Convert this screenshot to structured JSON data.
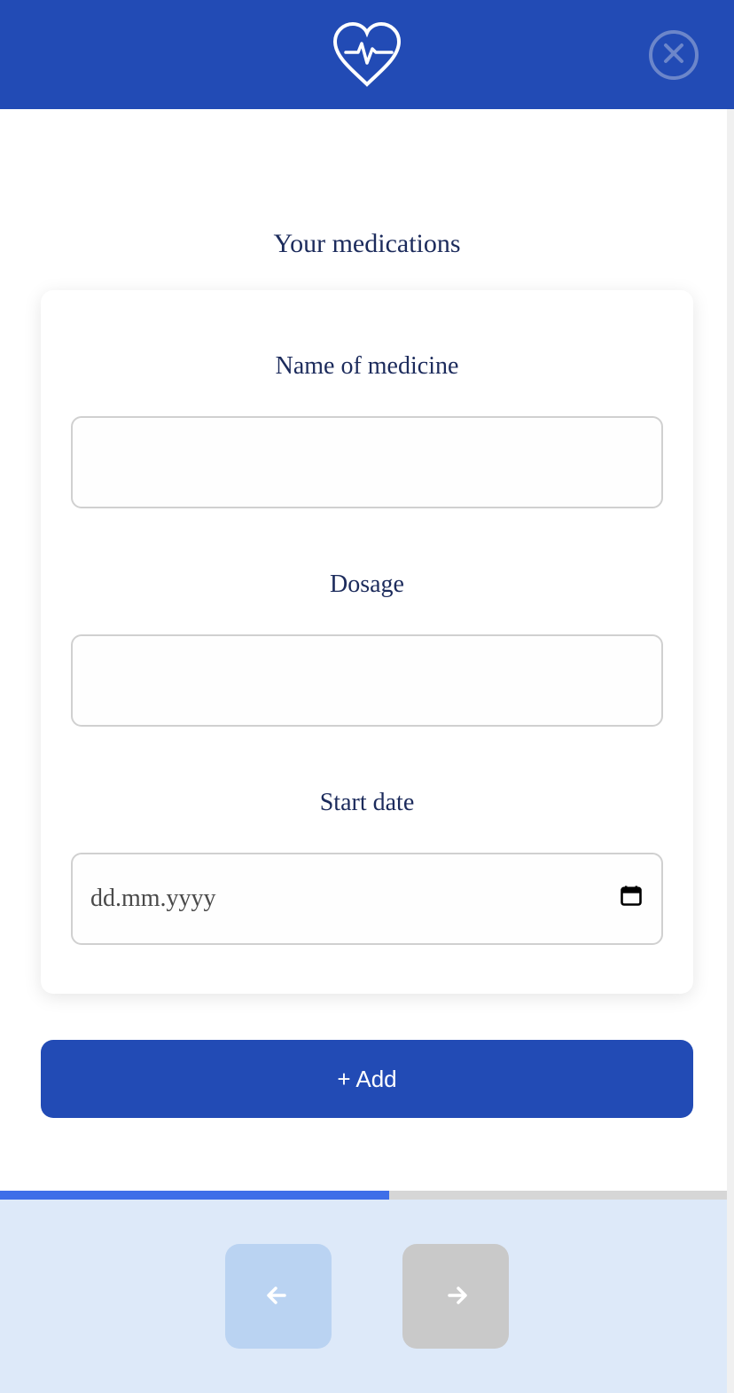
{
  "header": {
    "brand_color": "#224bb5"
  },
  "page": {
    "title": "Your medications"
  },
  "form": {
    "medicine_name": {
      "label": "Name of medicine",
      "value": ""
    },
    "dosage": {
      "label": "Dosage",
      "value": ""
    },
    "start_date": {
      "label": "Start date",
      "placeholder": "dd.mm.yyyy",
      "value": ""
    }
  },
  "buttons": {
    "add": "+ Add"
  },
  "progress": {
    "percent": 53,
    "fill_color": "#3e6ee8",
    "track_color": "#d6d6d6"
  },
  "colors": {
    "text_primary": "#1c2b5c",
    "card_bg": "#ffffff",
    "input_border": "#d0d0d0",
    "footer_bg": "#dde9f9",
    "back_btn_bg": "#bad3f2",
    "forward_btn_bg": "#c9c9c9"
  }
}
